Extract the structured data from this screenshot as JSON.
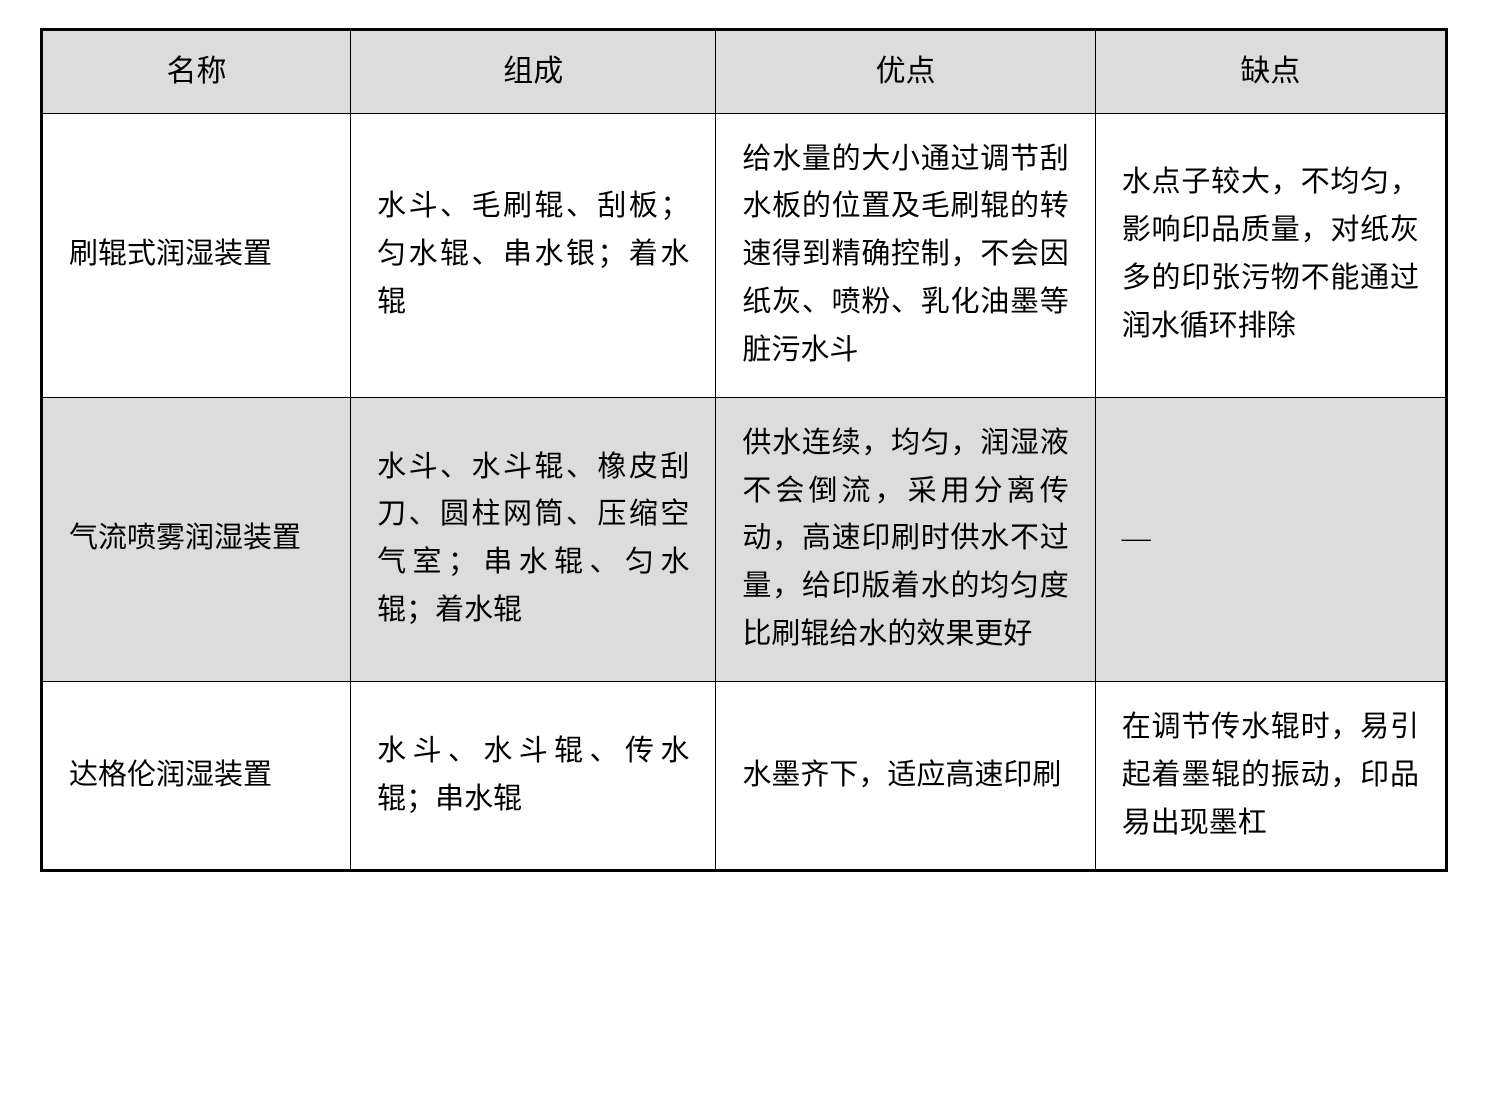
{
  "table": {
    "type": "table",
    "border_color": "#000000",
    "outer_border_width": 3,
    "inner_border_width": 1.5,
    "header_bg": "#dcdcdc",
    "shaded_row_bg": "#dcdcdc",
    "font_family": "SimSun",
    "font_size": 29,
    "header_font_size": 30,
    "line_height": 1.65,
    "text_color": "#000000",
    "column_widths_pct": [
      22,
      26,
      27,
      25
    ],
    "columns": [
      "名称",
      "组成",
      "优点",
      "缺点"
    ],
    "rows": [
      {
        "shaded": false,
        "name": "刷辊式润湿装置",
        "composition": "水斗、毛刷辊、刮板；匀水辊、串水银；着水辊",
        "advantage": "给水量的大小通过调节刮水板的位置及毛刷辊的转速得到精确控制，不会因纸灰、喷粉、乳化油墨等脏污水斗",
        "disadvantage": "水点子较大，不均匀，影响印品质量，对纸灰多的印张污物不能通过润水循环排除"
      },
      {
        "shaded": true,
        "name": "气流喷雾润湿装置",
        "composition": "水斗、水斗辊、橡皮刮刀、圆柱网筒、压缩空气室；串水辊、匀水辊；着水辊",
        "advantage": "供水连续，均匀，润湿液不会倒流，采用分离传动，高速印刷时供水不过量，给印版着水的均匀度比刷辊给水的效果更好",
        "disadvantage": "—"
      },
      {
        "shaded": false,
        "name": "达格伦润湿装置",
        "composition": "水斗、水斗辊、传水辊；串水辊",
        "advantage": "水墨齐下，适应高速印刷",
        "disadvantage": "在调节传水辊时，易引起着墨辊的振动，印品易出现墨杠"
      }
    ]
  }
}
